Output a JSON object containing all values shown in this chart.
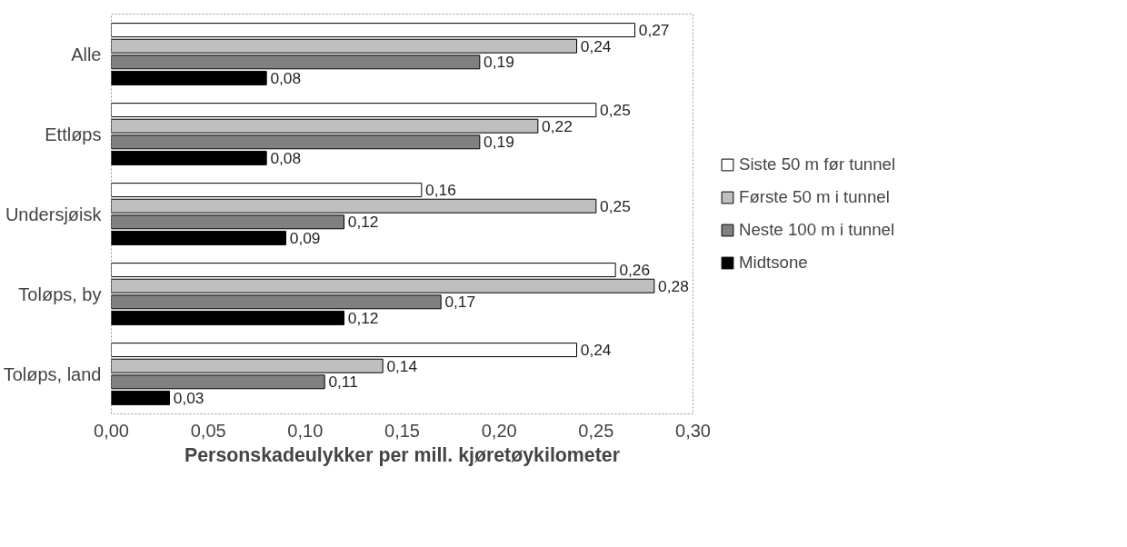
{
  "chart_data": {
    "type": "bar",
    "orientation": "horizontal",
    "xlabel": "Personskadeulykker per mill. kjøretøykilometer",
    "categories": [
      "Alle",
      "Ettløps",
      "Undersjøisk",
      "Toløps, by",
      "Toløps, land"
    ],
    "xlim": [
      0,
      0.3
    ],
    "xticks": [
      {
        "value": 0,
        "label": "0,00"
      },
      {
        "value": 0.05,
        "label": "0,05"
      },
      {
        "value": 0.1,
        "label": "0,10"
      },
      {
        "value": 0.15,
        "label": "0,15"
      },
      {
        "value": 0.2,
        "label": "0,20"
      },
      {
        "value": 0.25,
        "label": "0,25"
      },
      {
        "value": 0.3,
        "label": "0,30"
      }
    ],
    "series": [
      {
        "name": "Siste 50 m før tunnel",
        "color": "#ffffff",
        "values": [
          0.27,
          0.25,
          0.16,
          0.26,
          0.24
        ],
        "value_labels": [
          "0,27",
          "0,25",
          "0,16",
          "0,26",
          "0,24"
        ]
      },
      {
        "name": "Første 50 m i tunnel",
        "color": "#bfbfbf",
        "values": [
          0.24,
          0.22,
          0.25,
          0.28,
          0.14
        ],
        "value_labels": [
          "0,24",
          "0,22",
          "0,25",
          "0,28",
          "0,14"
        ]
      },
      {
        "name": "Neste 100 m i tunnel",
        "color": "#808080",
        "values": [
          0.19,
          0.19,
          0.12,
          0.17,
          0.11
        ],
        "value_labels": [
          "0,19",
          "0,19",
          "0,12",
          "0,17",
          "0,11"
        ]
      },
      {
        "name": "Midtsone",
        "color": "#000000",
        "values": [
          0.08,
          0.08,
          0.09,
          0.12,
          0.03
        ],
        "value_labels": [
          "0,08",
          "0,08",
          "0,09",
          "0,12",
          "0,03"
        ]
      }
    ],
    "legend": "right",
    "grid": false
  }
}
